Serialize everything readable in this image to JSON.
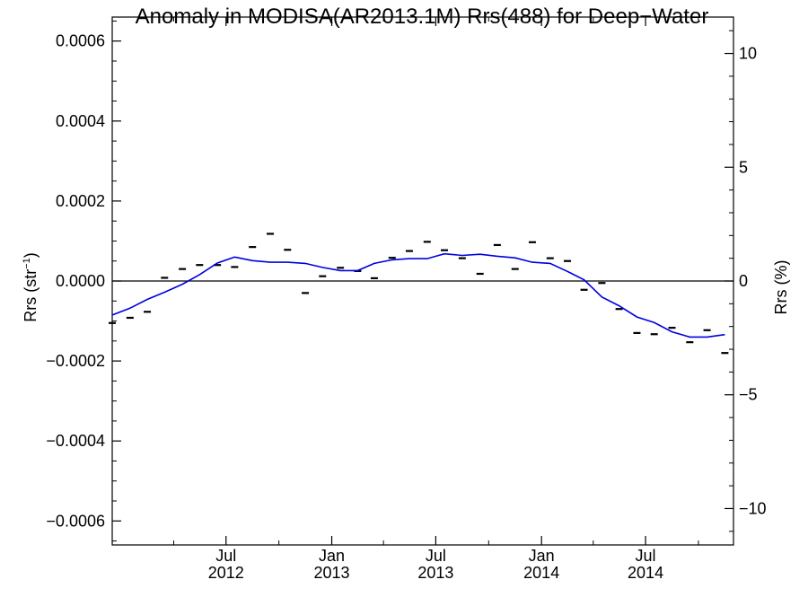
{
  "chart_data": {
    "type": "line",
    "title": "Anomaly in MODISA(AR2013.1M) Rrs(488) for Deep−Water",
    "ylabel": "Rrs (str",
    "ylabel_sup": "−1",
    "ylabel_close": ")",
    "y2label": "Rrs (%)",
    "ylim": [
      -0.00066,
      0.00066
    ],
    "y2lim": [
      -11.6,
      11.6
    ],
    "xlim": [
      "2011-12-16",
      "2014-12-01"
    ],
    "yticks": [
      {
        "value": 0.0006,
        "label": "0.0006"
      },
      {
        "value": 0.0004,
        "label": "0.0004"
      },
      {
        "value": 0.0002,
        "label": "0.0002"
      },
      {
        "value": 0.0,
        "label": "0.0000"
      },
      {
        "value": -0.0002,
        "label": "−0.0002"
      },
      {
        "value": -0.0004,
        "label": "−0.0004"
      },
      {
        "value": -0.0006,
        "label": "−0.0006"
      }
    ],
    "y2ticks": [
      {
        "value": 10,
        "label": "10"
      },
      {
        "value": 5,
        "label": "5"
      },
      {
        "value": 0,
        "label": "0"
      },
      {
        "value": -5,
        "label": "−5"
      },
      {
        "value": -10,
        "label": "−10"
      }
    ],
    "xticks": [
      {
        "date": "2012-07-01",
        "line1": "Jul",
        "line2": "2012"
      },
      {
        "date": "2013-01-01",
        "line1": "Jan",
        "line2": "2013"
      },
      {
        "date": "2013-07-01",
        "line1": "Jul",
        "line2": "2013"
      },
      {
        "date": "2014-01-01",
        "line1": "Jan",
        "line2": "2014"
      },
      {
        "date": "2014-07-01",
        "line1": "Jul",
        "line2": "2014"
      }
    ],
    "series": [
      {
        "style": "markers",
        "color": "#000000",
        "points": [
          {
            "x": "2011-12-16",
            "y": -0.000105
          },
          {
            "x": "2012-01-16",
            "y": -9.2e-05
          },
          {
            "x": "2012-02-15",
            "y": -7.7e-05
          },
          {
            "x": "2012-03-16",
            "y": 8e-06
          },
          {
            "x": "2012-04-16",
            "y": 3e-05
          },
          {
            "x": "2012-05-16",
            "y": 4e-05
          },
          {
            "x": "2012-06-16",
            "y": 4e-05
          },
          {
            "x": "2012-07-16",
            "y": 3.5e-05
          },
          {
            "x": "2012-08-16",
            "y": 8.5e-05
          },
          {
            "x": "2012-09-16",
            "y": 0.000118
          },
          {
            "x": "2012-10-16",
            "y": 7.8e-05
          },
          {
            "x": "2012-11-16",
            "y": -3e-05
          },
          {
            "x": "2012-12-16",
            "y": 1.2e-05
          },
          {
            "x": "2013-01-16",
            "y": 3.3e-05
          },
          {
            "x": "2013-02-15",
            "y": 2.5e-05
          },
          {
            "x": "2013-03-16",
            "y": 7e-06
          },
          {
            "x": "2013-04-16",
            "y": 5.8e-05
          },
          {
            "x": "2013-05-16",
            "y": 7.5e-05
          },
          {
            "x": "2013-06-16",
            "y": 9.8e-05
          },
          {
            "x": "2013-07-16",
            "y": 7.7e-05
          },
          {
            "x": "2013-08-16",
            "y": 5.7e-05
          },
          {
            "x": "2013-09-16",
            "y": 1.8e-05
          },
          {
            "x": "2013-10-16",
            "y": 9e-05
          },
          {
            "x": "2013-11-16",
            "y": 3e-05
          },
          {
            "x": "2013-12-16",
            "y": 9.7e-05
          },
          {
            "x": "2014-01-16",
            "y": 5.7e-05
          },
          {
            "x": "2014-02-15",
            "y": 5e-05
          },
          {
            "x": "2014-03-16",
            "y": -2.2e-05
          },
          {
            "x": "2014-04-16",
            "y": -5e-06
          },
          {
            "x": "2014-05-16",
            "y": -7e-05
          },
          {
            "x": "2014-06-16",
            "y": -0.00013
          },
          {
            "x": "2014-07-16",
            "y": -0.000133
          },
          {
            "x": "2014-08-16",
            "y": -0.000117
          },
          {
            "x": "2014-09-16",
            "y": -0.000153
          },
          {
            "x": "2014-10-16",
            "y": -0.000123
          },
          {
            "x": "2014-11-16",
            "y": -0.00018
          }
        ]
      },
      {
        "style": "line",
        "color": "#0000e0",
        "points": [
          {
            "x": "2011-12-16",
            "y": -8.5e-05
          },
          {
            "x": "2012-01-16",
            "y": -6.8e-05
          },
          {
            "x": "2012-02-15",
            "y": -4.6e-05
          },
          {
            "x": "2012-03-16",
            "y": -2.8e-05
          },
          {
            "x": "2012-04-16",
            "y": -8e-06
          },
          {
            "x": "2012-05-16",
            "y": 1.6e-05
          },
          {
            "x": "2012-06-16",
            "y": 4.5e-05
          },
          {
            "x": "2012-07-16",
            "y": 6e-05
          },
          {
            "x": "2012-08-16",
            "y": 5.1e-05
          },
          {
            "x": "2012-09-16",
            "y": 4.7e-05
          },
          {
            "x": "2012-10-16",
            "y": 4.7e-05
          },
          {
            "x": "2012-11-16",
            "y": 4.4e-05
          },
          {
            "x": "2012-12-16",
            "y": 3.4e-05
          },
          {
            "x": "2013-01-16",
            "y": 2.6e-05
          },
          {
            "x": "2013-02-15",
            "y": 2.6e-05
          },
          {
            "x": "2013-03-16",
            "y": 4.4e-05
          },
          {
            "x": "2013-04-16",
            "y": 5.3e-05
          },
          {
            "x": "2013-05-16",
            "y": 5.6e-05
          },
          {
            "x": "2013-06-16",
            "y": 5.6e-05
          },
          {
            "x": "2013-07-16",
            "y": 6.8e-05
          },
          {
            "x": "2013-08-16",
            "y": 6.4e-05
          },
          {
            "x": "2013-09-16",
            "y": 6.7e-05
          },
          {
            "x": "2013-10-16",
            "y": 6.2e-05
          },
          {
            "x": "2013-11-16",
            "y": 5.8e-05
          },
          {
            "x": "2013-12-16",
            "y": 4.7e-05
          },
          {
            "x": "2014-01-16",
            "y": 4.4e-05
          },
          {
            "x": "2014-02-15",
            "y": 2.4e-05
          },
          {
            "x": "2014-03-16",
            "y": 3e-06
          },
          {
            "x": "2014-04-16",
            "y": -4e-05
          },
          {
            "x": "2014-05-16",
            "y": -6.2e-05
          },
          {
            "x": "2014-06-16",
            "y": -9e-05
          },
          {
            "x": "2014-07-16",
            "y": -0.000104
          },
          {
            "x": "2014-08-16",
            "y": -0.000127
          },
          {
            "x": "2014-09-16",
            "y": -0.00014
          },
          {
            "x": "2014-10-16",
            "y": -0.00014
          },
          {
            "x": "2014-11-16",
            "y": -0.000134
          }
        ]
      }
    ],
    "zero_line": true,
    "grid": false
  }
}
